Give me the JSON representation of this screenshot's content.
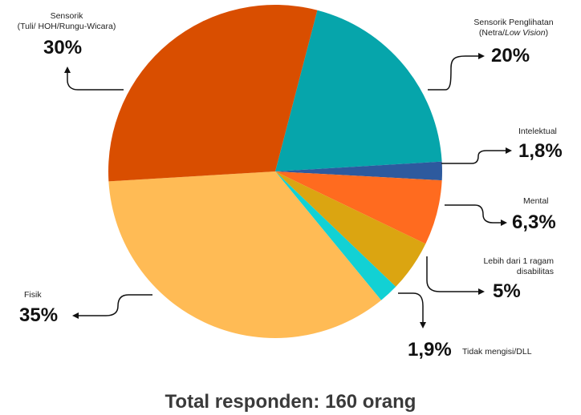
{
  "chart_data": {
    "type": "pie",
    "slices": [
      {
        "label": "Sensorik Penglihatan",
        "sublabel": "(Netra/Low Vision)",
        "value": 20,
        "display": "20%",
        "color": "#06a5ab"
      },
      {
        "label": "Intelektual",
        "sublabel": "",
        "value": 1.8,
        "display": "1,8%",
        "color": "#2d5a9e"
      },
      {
        "label": "Mental",
        "sublabel": "",
        "value": 6.3,
        "display": "6,3%",
        "color": "#ff6b1f"
      },
      {
        "label": "Lebih dari 1 ragam",
        "sublabel": "disabilitas",
        "value": 5,
        "display": "5%",
        "color": "#dba511"
      },
      {
        "label": "Tidak mengisi/DLL",
        "sublabel": "",
        "value": 1.9,
        "display": "1,9%",
        "color": "#12d1d4"
      },
      {
        "label": "Fisik",
        "sublabel": "",
        "value": 35,
        "display": "35%",
        "color": "#ffbb55"
      },
      {
        "label": "Sensorik",
        "sublabel": "(Tuli/ HOH/Rungu-Wicara)",
        "value": 30,
        "display": "30%",
        "color": "#d94e00"
      }
    ]
  },
  "labels": {
    "penglihatan_line1": "Sensorik Penglihatan",
    "penglihatan_line2_prefix": "(Netra/",
    "penglihatan_line2_italic": "Low Vision",
    "penglihatan_line2_suffix": ")",
    "penglihatan_pct": "20%",
    "intelektual": "Intelektual",
    "intelektual_pct": "1,8%",
    "mental": "Mental",
    "mental_pct": "6,3%",
    "lebih_line1": "Lebih dari 1 ragam",
    "lebih_line2": "disabilitas",
    "lebih_pct": "5%",
    "tidak": "Tidak mengisi/DLL",
    "tidak_pct": "1,9%",
    "fisik": "Fisik",
    "fisik_pct": "35%",
    "sensorik_line1": "Sensorik",
    "sensorik_line2": "(Tuli/ HOH/Rungu-Wicara)",
    "sensorik_pct": "30%"
  },
  "footer": "Total responden: 160 orang"
}
